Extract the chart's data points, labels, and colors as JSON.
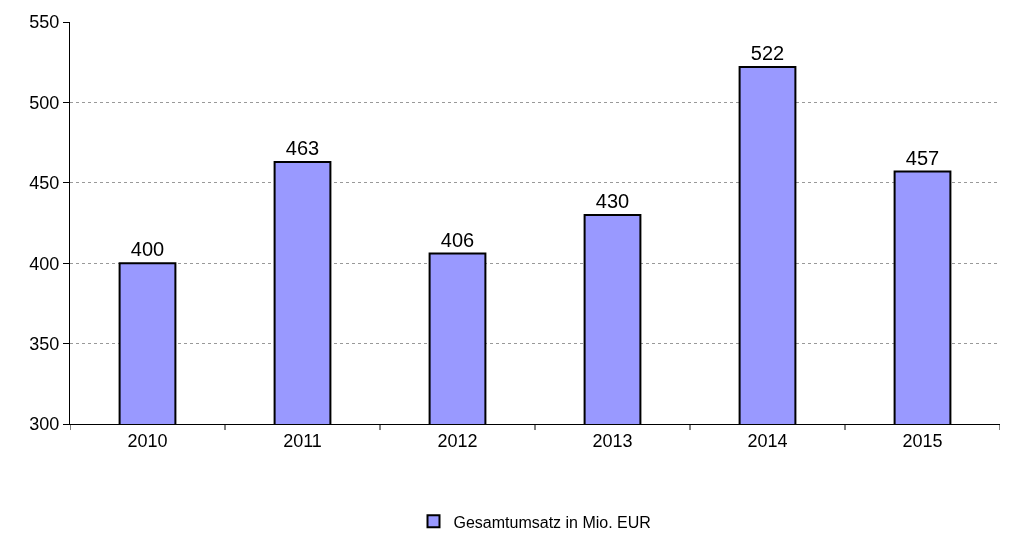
{
  "chart_data": {
    "type": "bar",
    "categories": [
      "2010",
      "2011",
      "2012",
      "2013",
      "2014",
      "2015"
    ],
    "series": [
      {
        "name": "Gesamtumsatz in Mio. EUR",
        "color": "#9999ff",
        "values": [
          400,
          463,
          406,
          430,
          522,
          457
        ]
      }
    ],
    "ylim": [
      300,
      550
    ],
    "yticks": [
      300,
      350,
      400,
      450,
      500,
      550
    ],
    "grid": "y",
    "legend": "bottom",
    "data_labels": true
  }
}
